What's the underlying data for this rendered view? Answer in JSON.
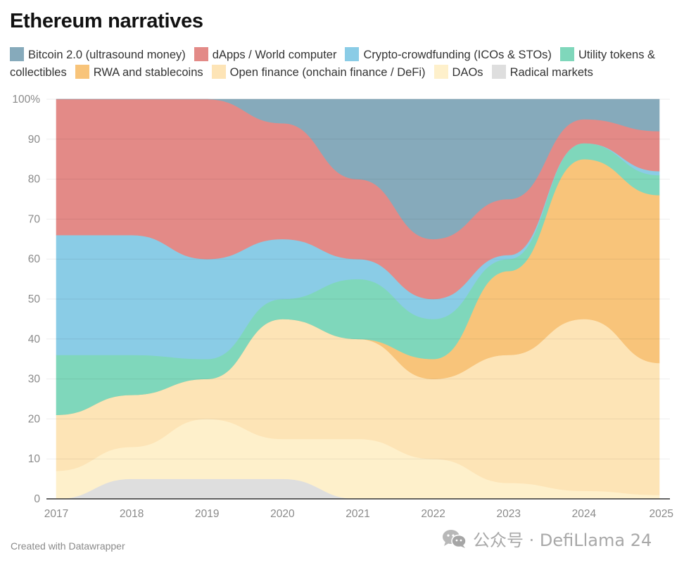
{
  "title": "Ethereum narratives",
  "footer": "Created with Datawrapper",
  "watermark": {
    "icon": "wechat-icon",
    "text": "公众号 · DefiLlama 24"
  },
  "legend": [
    {
      "label": "Bitcoin 2.0 (ultrasound money)",
      "color": "#86aabb"
    },
    {
      "label": "dApps / World computer",
      "color": "#e38a87"
    },
    {
      "label": "Crypto-crowdfunding (ICOs & STOs)",
      "color": "#8acce6"
    },
    {
      "label": "Utility tokens & collectibles",
      "color": "#7fd7bb"
    },
    {
      "label": "RWA and stablecoins",
      "color": "#f8c47a"
    },
    {
      "label": "Open finance (onchain finance / DeFi)",
      "color": "#fde4b6"
    },
    {
      "label": "DAOs",
      "color": "#fef0cb"
    },
    {
      "label": "Radical markets",
      "color": "#dedede"
    }
  ],
  "chart_data": {
    "type": "area",
    "stacked": true,
    "normalized": true,
    "title": "Ethereum narratives",
    "xlabel": "",
    "ylabel": "",
    "x": [
      "2017",
      "2018",
      "2019",
      "2020",
      "2021",
      "2022",
      "2023",
      "2024",
      "2025"
    ],
    "ylim": [
      0,
      100
    ],
    "yticks": [
      0,
      10,
      20,
      30,
      40,
      50,
      60,
      70,
      80,
      90,
      100
    ],
    "ytick_labels": [
      "0",
      "10",
      "20",
      "30",
      "40",
      "50",
      "60",
      "70",
      "80",
      "90",
      "100%"
    ],
    "grid": true,
    "legend_position": "top",
    "series_stack_order": "bottom-to-top",
    "series": [
      {
        "name": "Radical markets",
        "color": "#dedede",
        "values": [
          0,
          5,
          5,
          5,
          0,
          0,
          0,
          0,
          0
        ]
      },
      {
        "name": "DAOs",
        "color": "#fef0cb",
        "values": [
          7,
          8,
          15,
          10,
          15,
          10,
          4,
          2,
          1
        ]
      },
      {
        "name": "Open finance (onchain finance / DeFi)",
        "color": "#fde4b6",
        "values": [
          14,
          13,
          10,
          30,
          25,
          20,
          32,
          43,
          33
        ]
      },
      {
        "name": "RWA and stablecoins",
        "color": "#f8c47a",
        "values": [
          0,
          0,
          0,
          0,
          0,
          5,
          21,
          40,
          42
        ]
      },
      {
        "name": "Utility tokens & collectibles",
        "color": "#7fd7bb",
        "values": [
          15,
          10,
          5,
          5,
          15,
          10,
          3,
          4,
          5
        ]
      },
      {
        "name": "Crypto-crowdfunding (ICOs & STOs)",
        "color": "#8acce6",
        "values": [
          30,
          30,
          25,
          15,
          5,
          5,
          1,
          0,
          1
        ]
      },
      {
        "name": "dApps / World computer",
        "color": "#e38a87",
        "values": [
          34,
          34,
          40,
          29,
          20,
          15,
          14,
          6,
          10
        ]
      },
      {
        "name": "Bitcoin 2.0 (ultrasound money)",
        "color": "#86aabb",
        "values": [
          0,
          0,
          0,
          6,
          20,
          35,
          25,
          5,
          8
        ]
      }
    ]
  }
}
